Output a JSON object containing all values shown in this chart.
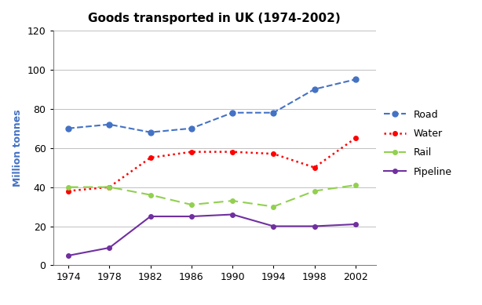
{
  "title": "Goods transported in UK (1974-2002)",
  "ylabel": "Million tonnes",
  "years": [
    1974,
    1978,
    1982,
    1986,
    1990,
    1994,
    1998,
    2002
  ],
  "road": [
    70,
    72,
    68,
    70,
    78,
    78,
    90,
    95
  ],
  "water": [
    38,
    40,
    55,
    58,
    58,
    57,
    50,
    65
  ],
  "rail": [
    40,
    40,
    36,
    31,
    33,
    30,
    38,
    41
  ],
  "pipeline": [
    5,
    9,
    25,
    25,
    26,
    20,
    20,
    21
  ],
  "road_color": "#4472C4",
  "water_color": "#FF0000",
  "rail_color": "#92D050",
  "pipeline_color": "#7030A0",
  "ylim": [
    0,
    120
  ],
  "yticks": [
    0,
    20,
    40,
    60,
    80,
    100,
    120
  ],
  "xlim": [
    1972.5,
    2004
  ],
  "title_fontsize": 11,
  "label_fontsize": 9,
  "tick_fontsize": 9,
  "legend_fontsize": 9,
  "background_color": "#FFFFFF"
}
